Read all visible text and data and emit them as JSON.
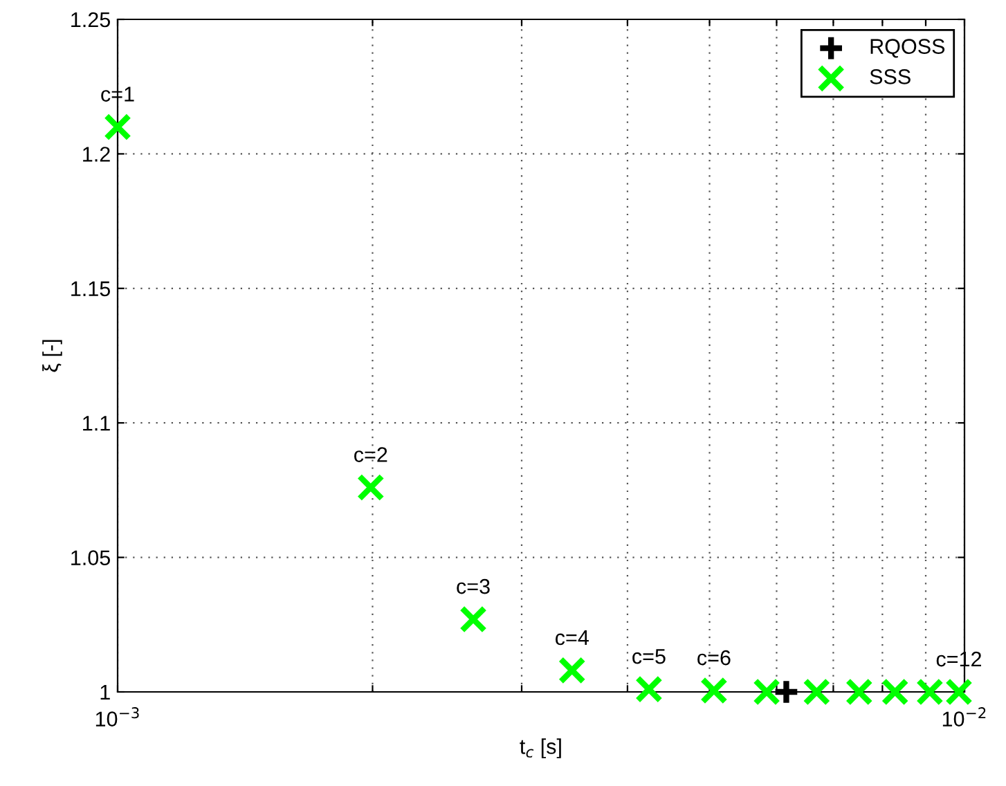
{
  "chart_data": {
    "type": "scatter",
    "log": "x",
    "grid": true,
    "legend": "top right",
    "xlabel": "t$_{c}$ [s]",
    "ylabel": "ξ [-]",
    "xlim": [
      0.001,
      0.01
    ],
    "ylim": [
      1,
      1.25
    ],
    "xticks": [
      {
        "value": 0.001,
        "label": "10$^{−3}$"
      },
      {
        "value": 0.002,
        "label": null
      },
      {
        "value": 0.003,
        "label": null
      },
      {
        "value": 0.004,
        "label": null
      },
      {
        "value": 0.005,
        "label": null
      },
      {
        "value": 0.006,
        "label": null
      },
      {
        "value": 0.007,
        "label": null
      },
      {
        "value": 0.008,
        "label": null
      },
      {
        "value": 0.009,
        "label": null
      },
      {
        "value": 0.01,
        "label": "10$^{−2}$"
      }
    ],
    "yticks": [
      1,
      1.05,
      1.1,
      1.15,
      1.2,
      1.25
    ],
    "series": [
      {
        "name": "RQOSS",
        "color": "#000000",
        "marker": "cross",
        "x": [
          0.00616
        ],
        "values": [
          1.0
        ]
      },
      {
        "name": "SSS",
        "color": "#00ff00",
        "marker": "x",
        "x": [
          0.001,
          0.00199,
          0.00263,
          0.00344,
          0.00424,
          0.00506,
          0.00584,
          0.00669,
          0.00751,
          0.00828,
          0.0091,
          0.00985
        ],
        "values": [
          1.21,
          1.076,
          1.027,
          1.008,
          1.001,
          1.0005,
          1.0,
          1.0,
          1.0,
          1.0,
          1.0,
          1.0
        ]
      }
    ],
    "annotations": [
      {
        "text": "c=1",
        "x": 0.001,
        "y": 1.21
      },
      {
        "text": "c=2",
        "x": 0.00199,
        "y": 1.076
      },
      {
        "text": "c=3",
        "x": 0.00263,
        "y": 1.027
      },
      {
        "text": "c=4",
        "x": 0.00344,
        "y": 1.008
      },
      {
        "text": "c=5",
        "x": 0.00424,
        "y": 1.001
      },
      {
        "text": "c=6",
        "x": 0.00506,
        "y": 1.0005
      },
      {
        "text": "c=12",
        "x": 0.00985,
        "y": 1.0
      }
    ]
  }
}
